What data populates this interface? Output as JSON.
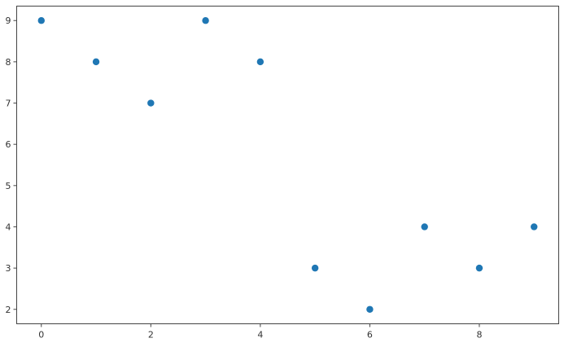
{
  "chart_data": {
    "type": "scatter",
    "title": "",
    "xlabel": "",
    "ylabel": "",
    "x": [
      0,
      1,
      2,
      3,
      4,
      5,
      6,
      7,
      8,
      9
    ],
    "y": [
      9,
      8,
      7,
      9,
      8,
      3,
      2,
      4,
      3,
      4
    ],
    "xlim": [
      -0.45,
      9.45
    ],
    "ylim": [
      1.65,
      9.35
    ],
    "xticks": [
      "0",
      "2",
      "4",
      "6",
      "8"
    ],
    "yticks": [
      "2",
      "3",
      "4",
      "5",
      "6",
      "7",
      "8",
      "9"
    ],
    "grid": false,
    "color": "#1f77b4"
  }
}
